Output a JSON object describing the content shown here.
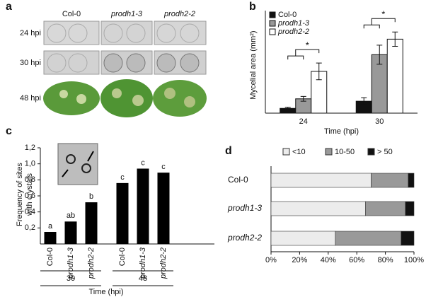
{
  "panel_a": {
    "label": "a",
    "columns": [
      "Col-0",
      "prodh1-3",
      "prodh2-2"
    ],
    "rows": [
      "24 hpi",
      "30 hpi",
      "48 hpi"
    ]
  },
  "chart_data": [
    {
      "type": "bar",
      "panel_label": "b",
      "ylabel": "Mycelial area (mm²)",
      "xlabel": "Time (hpi)",
      "categories": [
        "24",
        "30"
      ],
      "ylim": [
        0,
        4
      ],
      "series": [
        {
          "name": "Col-0",
          "color": "#111111",
          "values": [
            0.2,
            0.5
          ],
          "errors": [
            0.05,
            0.15
          ]
        },
        {
          "name": "prodh1-3",
          "color": "#999999",
          "values": [
            0.6,
            2.45
          ],
          "errors": [
            0.1,
            0.4
          ]
        },
        {
          "name": "prodh2-2",
          "color": "#ffffff",
          "values": [
            1.75,
            3.1
          ],
          "errors": [
            0.35,
            0.3
          ]
        }
      ],
      "annotations": [
        "*",
        "*"
      ]
    },
    {
      "type": "bar",
      "panel_label": "c",
      "ylabel_lines": [
        "Frequency of sites",
        "with crystals"
      ],
      "xlabel": "Time (hpi)",
      "categories": [
        "Col-0",
        "prodh1-3",
        "prodh2-2",
        "Col-0",
        "prodh1-3",
        "prodh2-2"
      ],
      "groups": [
        "30",
        "48"
      ],
      "color": "#000000",
      "values": [
        0.15,
        0.28,
        0.52,
        0.76,
        0.94,
        0.89
      ],
      "letters": [
        "a",
        "ab",
        "b",
        "c",
        "c",
        "c"
      ],
      "ylim": [
        0,
        1.2
      ],
      "yticks": [
        {
          "value": 0.2,
          "label": "0,2"
        },
        {
          "value": 0.4,
          "label": "0,4"
        },
        {
          "value": 0.6,
          "label": "0,6"
        },
        {
          "value": 0.8,
          "label": "0,8"
        },
        {
          "value": 1.0,
          "label": "1,0"
        },
        {
          "value": 1.2,
          "label": "1,2"
        }
      ]
    },
    {
      "type": "stacked-barh",
      "panel_label": "d",
      "categories": [
        "Col-0",
        "prodh1-3",
        "prodh2-2"
      ],
      "series": [
        {
          "name": "<10",
          "color": "#ececec",
          "values": [
            70,
            66,
            45
          ]
        },
        {
          "name": "10-50",
          "color": "#999999",
          "values": [
            26,
            28,
            46
          ]
        },
        {
          "name": "> 50",
          "color": "#111111",
          "values": [
            4,
            6,
            9
          ]
        }
      ],
      "xlim": [
        0,
        100
      ],
      "xticks": [
        {
          "value": 0,
          "label": "0%"
        },
        {
          "value": 20,
          "label": "20%"
        },
        {
          "value": 40,
          "label": "40%"
        },
        {
          "value": 60,
          "label": "60%"
        },
        {
          "value": 80,
          "label": "80%"
        },
        {
          "value": 100,
          "label": "100%"
        }
      ]
    }
  ]
}
